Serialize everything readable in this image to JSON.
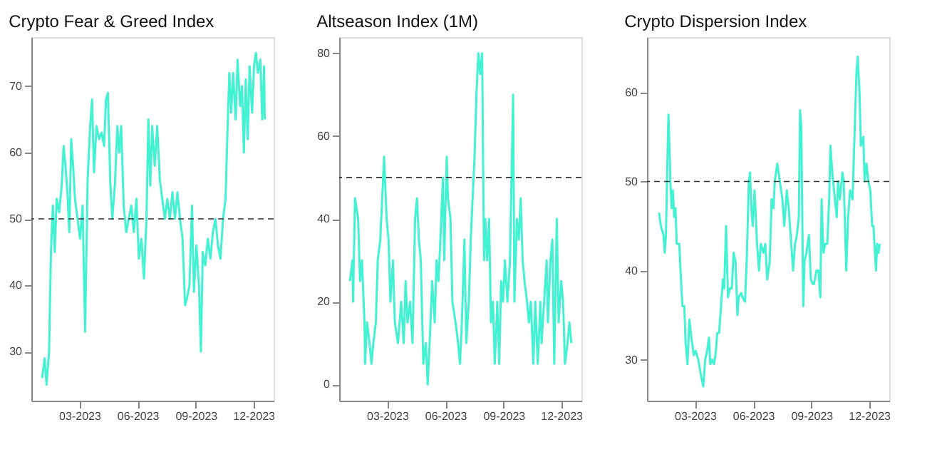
{
  "chart_data": [
    {
      "type": "line",
      "title": "Crypto Fear & Greed Index",
      "color": "#42f2d2",
      "line_style": "solid",
      "grid": false,
      "x": [
        "2023-01-01",
        "2023-01-05",
        "2023-01-08",
        "2023-01-12",
        "2023-01-15",
        "2023-01-18",
        "2023-01-21",
        "2023-01-24",
        "2023-01-28",
        "2023-02-01",
        "2023-02-04",
        "2023-02-07",
        "2023-02-10",
        "2023-02-13",
        "2023-02-16",
        "2023-02-19",
        "2023-02-22",
        "2023-02-26",
        "2023-03-02",
        "2023-03-06",
        "2023-03-10",
        "2023-03-14",
        "2023-03-18",
        "2023-03-21",
        "2023-03-24",
        "2023-03-28",
        "2023-04-01",
        "2023-04-05",
        "2023-04-09",
        "2023-04-12",
        "2023-04-15",
        "2023-04-19",
        "2023-04-22",
        "2023-04-26",
        "2023-04-30",
        "2023-05-03",
        "2023-05-06",
        "2023-05-10",
        "2023-05-14",
        "2023-05-18",
        "2023-05-22",
        "2023-05-26",
        "2023-05-30",
        "2023-06-03",
        "2023-06-07",
        "2023-06-11",
        "2023-06-15",
        "2023-06-18",
        "2023-06-21",
        "2023-06-24",
        "2023-06-28",
        "2023-07-02",
        "2023-07-06",
        "2023-07-10",
        "2023-07-14",
        "2023-07-18",
        "2023-07-22",
        "2023-07-26",
        "2023-07-30",
        "2023-08-03",
        "2023-08-07",
        "2023-08-11",
        "2023-08-15",
        "2023-08-18",
        "2023-08-22",
        "2023-08-26",
        "2023-08-29",
        "2023-09-02",
        "2023-09-06",
        "2023-09-09",
        "2023-09-12",
        "2023-09-16",
        "2023-09-20",
        "2023-09-24",
        "2023-09-28",
        "2023-10-02",
        "2023-10-06",
        "2023-10-10",
        "2023-10-14",
        "2023-10-18",
        "2023-10-21",
        "2023-10-24",
        "2023-10-27",
        "2023-10-30",
        "2023-11-03",
        "2023-11-06",
        "2023-11-10",
        "2023-11-13",
        "2023-11-16",
        "2023-11-19",
        "2023-11-22",
        "2023-11-25",
        "2023-11-29",
        "2023-12-02",
        "2023-12-05",
        "2023-12-08",
        "2023-12-12",
        "2023-12-15",
        "2023-12-18",
        "2023-12-19"
      ],
      "values": [
        26,
        29,
        25,
        30,
        45,
        52,
        45,
        53,
        51,
        55,
        61,
        58,
        54,
        48,
        62,
        58,
        53,
        50,
        47,
        52,
        33,
        56,
        64,
        68,
        57,
        64,
        62,
        63,
        61,
        68,
        69,
        55,
        50,
        55,
        64,
        60,
        64,
        52,
        48,
        50,
        52,
        48,
        53,
        44,
        47,
        41,
        50,
        65,
        55,
        64,
        58,
        64,
        56,
        53,
        50,
        53,
        50,
        54,
        50,
        54,
        50,
        47,
        37,
        38,
        40,
        52,
        39,
        46,
        40,
        30,
        45,
        43,
        47,
        44,
        48,
        50,
        46,
        44,
        50,
        53,
        63,
        72,
        66,
        72,
        65,
        74,
        67,
        70,
        60,
        71,
        62,
        73,
        66,
        73,
        75,
        72,
        74,
        65,
        73,
        65
      ],
      "xlim": [
        "2022-12-15",
        "2024-01-02"
      ],
      "xticks": [
        {
          "value": "2023-03-01",
          "label": "03-2023"
        },
        {
          "value": "2023-06-01",
          "label": "06-2023"
        },
        {
          "value": "2023-09-01",
          "label": "09-2023"
        },
        {
          "value": "2023-12-01",
          "label": "12-2023"
        }
      ],
      "ylim": [
        22.6,
        77.4
      ],
      "yticks": [
        30,
        40,
        50,
        60,
        70
      ],
      "ref_lines": [
        {
          "axis": "y",
          "value": 50,
          "color": "#333333",
          "line_style": "dashed"
        }
      ]
    },
    {
      "type": "line",
      "title": "Altseason Index (1M)",
      "color": "#42f2d2",
      "line_style": "solid",
      "grid": false,
      "x": [
        "2023-01-01",
        "2023-01-05",
        "2023-01-06",
        "2023-01-09",
        "2023-01-14",
        "2023-01-17",
        "2023-01-20",
        "2023-01-24",
        "2023-01-25",
        "2023-01-28",
        "2023-02-01",
        "2023-02-04",
        "2023-02-07",
        "2023-02-11",
        "2023-02-14",
        "2023-02-18",
        "2023-02-21",
        "2023-02-24",
        "2023-02-28",
        "2023-03-03",
        "2023-03-06",
        "2023-03-10",
        "2023-03-13",
        "2023-03-18",
        "2023-03-23",
        "2023-03-27",
        "2023-03-30",
        "2023-04-02",
        "2023-04-06",
        "2023-04-10",
        "2023-04-14",
        "2023-04-17",
        "2023-04-20",
        "2023-04-23",
        "2023-04-27",
        "2023-05-01",
        "2023-05-04",
        "2023-05-07",
        "2023-05-11",
        "2023-05-15",
        "2023-05-18",
        "2023-05-21",
        "2023-05-24",
        "2023-05-28",
        "2023-05-30",
        "2023-06-03",
        "2023-06-05",
        "2023-06-09",
        "2023-06-12",
        "2023-06-17",
        "2023-06-21",
        "2023-06-24",
        "2023-06-27",
        "2023-07-01",
        "2023-07-04",
        "2023-07-08",
        "2023-07-11",
        "2023-07-14",
        "2023-07-17",
        "2023-07-20",
        "2023-07-23",
        "2023-07-26",
        "2023-07-29",
        "2023-08-01",
        "2023-08-03",
        "2023-08-06",
        "2023-08-09",
        "2023-08-12",
        "2023-08-15",
        "2023-08-18",
        "2023-08-22",
        "2023-08-25",
        "2023-08-28",
        "2023-08-31",
        "2023-09-03",
        "2023-09-07",
        "2023-09-11",
        "2023-09-16",
        "2023-09-18",
        "2023-09-22",
        "2023-09-25",
        "2023-09-28",
        "2023-10-01",
        "2023-10-04",
        "2023-10-08",
        "2023-10-11",
        "2023-10-14",
        "2023-10-18",
        "2023-10-21",
        "2023-10-25",
        "2023-10-29",
        "2023-10-31",
        "2023-11-04",
        "2023-11-08",
        "2023-11-10",
        "2023-11-14",
        "2023-11-17",
        "2023-11-20",
        "2023-11-24",
        "2023-11-27",
        "2023-12-01",
        "2023-12-04",
        "2023-12-07",
        "2023-12-11",
        "2023-12-14",
        "2023-12-17"
      ],
      "values": [
        25,
        30,
        20,
        45,
        40,
        25,
        30,
        15,
        5,
        15,
        10,
        5,
        10,
        15,
        30,
        35,
        45,
        55,
        40,
        35,
        20,
        30,
        15,
        10,
        20,
        10,
        25,
        15,
        20,
        10,
        40,
        45,
        35,
        30,
        5,
        10,
        0,
        10,
        25,
        15,
        30,
        25,
        35,
        50,
        30,
        55,
        45,
        40,
        20,
        15,
        10,
        5,
        15,
        35,
        10,
        20,
        35,
        45,
        55,
        70,
        80,
        75,
        80,
        30,
        40,
        30,
        40,
        15,
        20,
        5,
        20,
        5,
        25,
        20,
        30,
        20,
        30,
        70,
        20,
        40,
        35,
        45,
        30,
        25,
        20,
        15,
        20,
        5,
        20,
        5,
        20,
        10,
        20,
        30,
        15,
        30,
        35,
        5,
        40,
        15,
        25,
        20,
        5,
        10,
        15,
        10
      ],
      "xlim": [
        "2022-12-15",
        "2024-01-02"
      ],
      "xticks": [
        {
          "value": "2023-03-01",
          "label": "03-2023"
        },
        {
          "value": "2023-06-01",
          "label": "06-2023"
        },
        {
          "value": "2023-09-01",
          "label": "09-2023"
        },
        {
          "value": "2023-12-01",
          "label": "12-2023"
        }
      ],
      "ylim": [
        -3.9,
        83.9
      ],
      "yticks": [
        0,
        20,
        40,
        60,
        80
      ],
      "ref_lines": [
        {
          "axis": "y",
          "value": 50,
          "color": "#333333",
          "line_style": "dashed"
        }
      ]
    },
    {
      "type": "line",
      "title": "Crypto Dispersion Index",
      "color": "#42f2d2",
      "line_style": "solid",
      "grid": false,
      "x": [
        "2023-01-03",
        "2023-01-06",
        "2023-01-10",
        "2023-01-12",
        "2023-01-14",
        "2023-01-17",
        "2023-01-18",
        "2023-01-21",
        "2023-01-23",
        "2023-01-25",
        "2023-01-27",
        "2023-01-29",
        "2023-01-31",
        "2023-02-04",
        "2023-02-06",
        "2023-02-09",
        "2023-02-12",
        "2023-02-14",
        "2023-02-17",
        "2023-02-20",
        "2023-02-24",
        "2023-02-27",
        "2023-03-02",
        "2023-03-06",
        "2023-03-11",
        "2023-03-14",
        "2023-03-17",
        "2023-03-20",
        "2023-03-23",
        "2023-03-25",
        "2023-03-28",
        "2023-03-31",
        "2023-04-03",
        "2023-04-05",
        "2023-04-08",
        "2023-04-11",
        "2023-04-14",
        "2023-04-16",
        "2023-04-19",
        "2023-04-22",
        "2023-04-25",
        "2023-04-28",
        "2023-05-01",
        "2023-05-04",
        "2023-05-07",
        "2023-05-09",
        "2023-05-13",
        "2023-05-15",
        "2023-05-19",
        "2023-05-22",
        "2023-05-25",
        "2023-05-27",
        "2023-05-29",
        "2023-05-31",
        "2023-06-03",
        "2023-06-07",
        "2023-06-10",
        "2023-06-13",
        "2023-06-17",
        "2023-06-20",
        "2023-06-23",
        "2023-06-27",
        "2023-06-30",
        "2023-07-03",
        "2023-07-05",
        "2023-07-09",
        "2023-07-13",
        "2023-07-17",
        "2023-07-20",
        "2023-07-24",
        "2023-07-27",
        "2023-07-30",
        "2023-08-03",
        "2023-08-06",
        "2023-08-09",
        "2023-08-12",
        "2023-08-14",
        "2023-08-16",
        "2023-08-19",
        "2023-08-21",
        "2023-08-24",
        "2023-08-28",
        "2023-08-31",
        "2023-09-03",
        "2023-09-05",
        "2023-09-09",
        "2023-09-12",
        "2023-09-15",
        "2023-09-17",
        "2023-09-20",
        "2023-09-23",
        "2023-09-26",
        "2023-09-29",
        "2023-10-01",
        "2023-10-04",
        "2023-10-08",
        "2023-10-11",
        "2023-10-13",
        "2023-10-16",
        "2023-10-20",
        "2023-10-22",
        "2023-10-26",
        "2023-10-29",
        "2023-11-01",
        "2023-11-05",
        "2023-11-08",
        "2023-11-11",
        "2023-11-13",
        "2023-11-16",
        "2023-11-18",
        "2023-11-22",
        "2023-11-24",
        "2023-11-27",
        "2023-11-30",
        "2023-12-03",
        "2023-12-06",
        "2023-12-08",
        "2023-12-12",
        "2023-12-14",
        "2023-12-16",
        "2023-12-18"
      ],
      "values": [
        46.5,
        45,
        44,
        42,
        44,
        55,
        57.5,
        50,
        47,
        49,
        46,
        47,
        43,
        43,
        40,
        36,
        36,
        32,
        29.5,
        34.5,
        32,
        30.5,
        31,
        30,
        28,
        27,
        30,
        31,
        32.5,
        29.5,
        30,
        29.5,
        31,
        33,
        33,
        36,
        39,
        38,
        45,
        37,
        38,
        38,
        42,
        41,
        35,
        37,
        37.5,
        37,
        36.5,
        42,
        50,
        51,
        47,
        45,
        49,
        43,
        40,
        43,
        42,
        43,
        39,
        41,
        48,
        47,
        50,
        52,
        50,
        48,
        45,
        49,
        47,
        44,
        40,
        43,
        44,
        46,
        58,
        56,
        36,
        41,
        42,
        44,
        39,
        38.5,
        38.5,
        40,
        40,
        37,
        48,
        42,
        43,
        43,
        48,
        54,
        51,
        48,
        46,
        50,
        48,
        51,
        50,
        40,
        46,
        49,
        48,
        55,
        62,
        64,
        60,
        54,
        55,
        50,
        52,
        50,
        49,
        45,
        45,
        40,
        43,
        42,
        43
      ],
      "xlim": [
        "2022-12-15",
        "2024-01-02"
      ],
      "xticks": [
        {
          "value": "2023-03-01",
          "label": "03-2023"
        },
        {
          "value": "2023-06-01",
          "label": "06-2023"
        },
        {
          "value": "2023-09-01",
          "label": "09-2023"
        },
        {
          "value": "2023-12-01",
          "label": "12-2023"
        }
      ],
      "ylim": [
        25.4,
        66.2
      ],
      "yticks": [
        30,
        40,
        50,
        60
      ],
      "ref_lines": [
        {
          "axis": "y",
          "value": 50,
          "color": "#333333",
          "line_style": "dashed"
        }
      ]
    }
  ]
}
